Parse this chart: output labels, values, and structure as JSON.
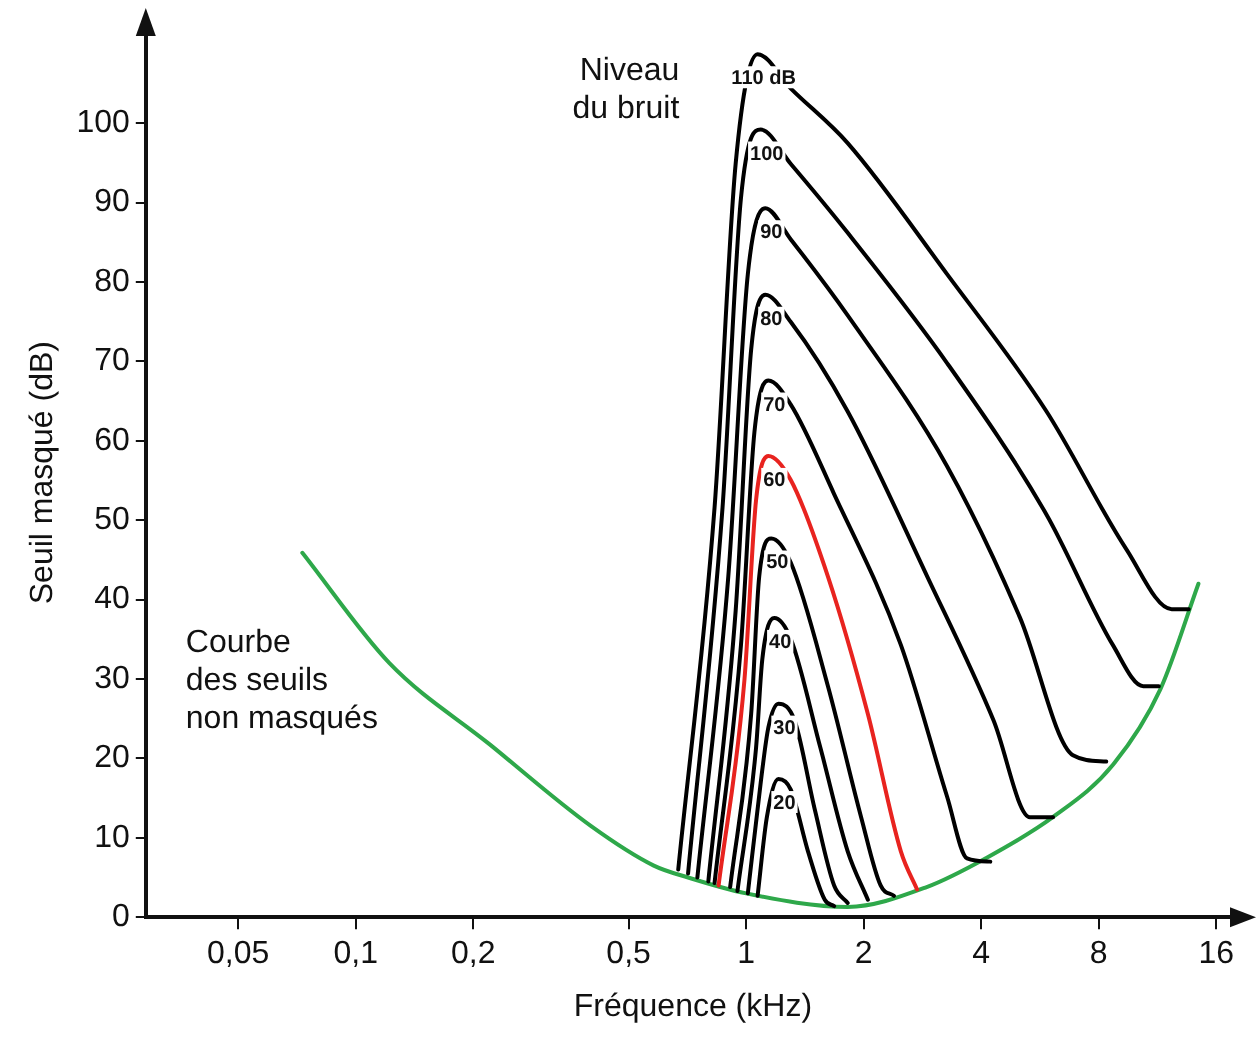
{
  "chart_data": {
    "type": "line",
    "xlabel": "Fréquence (kHz)",
    "ylabel": "Seuil masqué (dB)",
    "log": "x",
    "marker": "none",
    "grid": false,
    "xlim": [
      0.029,
      18.4
    ],
    "xticks": [
      {
        "value": 0.05,
        "label": "0,05"
      },
      {
        "value": 0.1,
        "label": "0,1"
      },
      {
        "value": 0.2,
        "label": "0,2"
      },
      {
        "value": 0.5,
        "label": "0,5"
      },
      1,
      2,
      4,
      8,
      16
    ],
    "ylim": [
      0,
      112
    ],
    "yticks": [
      0,
      10,
      20,
      30,
      40,
      50,
      60,
      70,
      80,
      90,
      100
    ],
    "annotations": [
      "Niveau\ndu bruit",
      "Courbe\ndes seuils\nnon masqués"
    ],
    "series": [
      {
        "name": "110 dB",
        "color": "#000000",
        "x": [
          0.67,
          0.83,
          0.94,
          1.07,
          1.3,
          1.82,
          3.27,
          5.88,
          9.4,
          12.3,
          13.6
        ],
        "values": [
          6,
          51.6,
          94.9,
          108.7,
          104.4,
          97.5,
          81,
          63.7,
          46.4,
          38.8,
          38.8
        ]
      },
      {
        "name": "100",
        "color": "#000000",
        "x": [
          0.71,
          0.87,
          0.97,
          1.09,
          1.3,
          1.82,
          3.27,
          5.88,
          8.69,
          10.4,
          11.4
        ],
        "values": [
          5.5,
          51.6,
          90.6,
          99.2,
          94.9,
          86.2,
          69.8,
          50.7,
          34.3,
          29.1,
          29.1
        ]
      },
      {
        "name": "90",
        "color": "#000000",
        "x": [
          0.75,
          0.9,
          1.01,
          1.12,
          1.3,
          1.82,
          3.27,
          5.03,
          6.87,
          8.36
        ],
        "values": [
          5,
          42.9,
          81,
          89.3,
          85.4,
          75.8,
          56.8,
          37.7,
          20.4,
          19.6
        ]
      },
      {
        "name": "80",
        "color": "#000000",
        "x": [
          0.8,
          0.94,
          1.03,
          1.12,
          1.3,
          1.82,
          2.91,
          4.3,
          5.33,
          6.11
        ],
        "values": [
          4.5,
          38.6,
          71.5,
          78.4,
          75,
          63.7,
          42.9,
          24.8,
          12.6,
          12.6
        ]
      },
      {
        "name": "70",
        "color": "#000000",
        "x": [
          0.83,
          0.97,
          1.05,
          1.14,
          1.3,
          1.68,
          2.49,
          3.27,
          3.68,
          4.22
        ],
        "values": [
          4.3,
          34.3,
          61.1,
          67.6,
          64.6,
          53.3,
          34.3,
          15.2,
          7.4,
          7.0
        ]
      },
      {
        "name": "60",
        "color": "#e8231f",
        "x": [
          0.85,
          0.99,
          1.06,
          1.14,
          1.3,
          1.62,
          2.05,
          2.49,
          2.74
        ],
        "values": [
          4,
          29.9,
          52.5,
          58.1,
          55.1,
          42.9,
          25.6,
          8.3,
          3.5
        ]
      },
      {
        "name": "50",
        "color": "#000000",
        "x": [
          0.91,
          1.03,
          1.08,
          1.16,
          1.3,
          1.62,
          1.97,
          2.21,
          2.39
        ],
        "values": [
          3.8,
          25.6,
          42.9,
          47.7,
          44.7,
          29.1,
          12.6,
          4.0,
          2.7
        ]
      },
      {
        "name": "40",
        "color": "#000000",
        "x": [
          0.95,
          1.06,
          1.1,
          1.18,
          1.3,
          1.55,
          1.82,
          2.05
        ],
        "values": [
          3.3,
          21.3,
          32.5,
          37.7,
          35.1,
          21.3,
          8.3,
          2.2
        ]
      },
      {
        "name": "30",
        "color": "#000000",
        "x": [
          1.01,
          1.09,
          1.14,
          1.21,
          1.33,
          1.5,
          1.68,
          1.82
        ],
        "values": [
          3,
          17,
          23.9,
          26.9,
          24.8,
          13.5,
          4.0,
          1.8
        ]
      },
      {
        "name": "20",
        "color": "#000000",
        "x": [
          1.07,
          1.13,
          1.21,
          1.3,
          1.44,
          1.59,
          1.68
        ],
        "values": [
          2.7,
          12.6,
          17.4,
          16.1,
          8.3,
          2.2,
          1.4
        ]
      },
      {
        "color": "#2ea84a",
        "x": [
          0.073,
          0.122,
          0.22,
          0.4,
          0.58,
          0.71,
          1.0,
          1.82,
          2.9,
          4.1,
          6.1,
          8.7,
          11.5,
          14.4
        ],
        "values": [
          45.9,
          32,
          21.8,
          11.5,
          6.5,
          5,
          3,
          1.3,
          3.8,
          7.4,
          12.6,
          19.2,
          28.7,
          42
        ]
      }
    ]
  }
}
